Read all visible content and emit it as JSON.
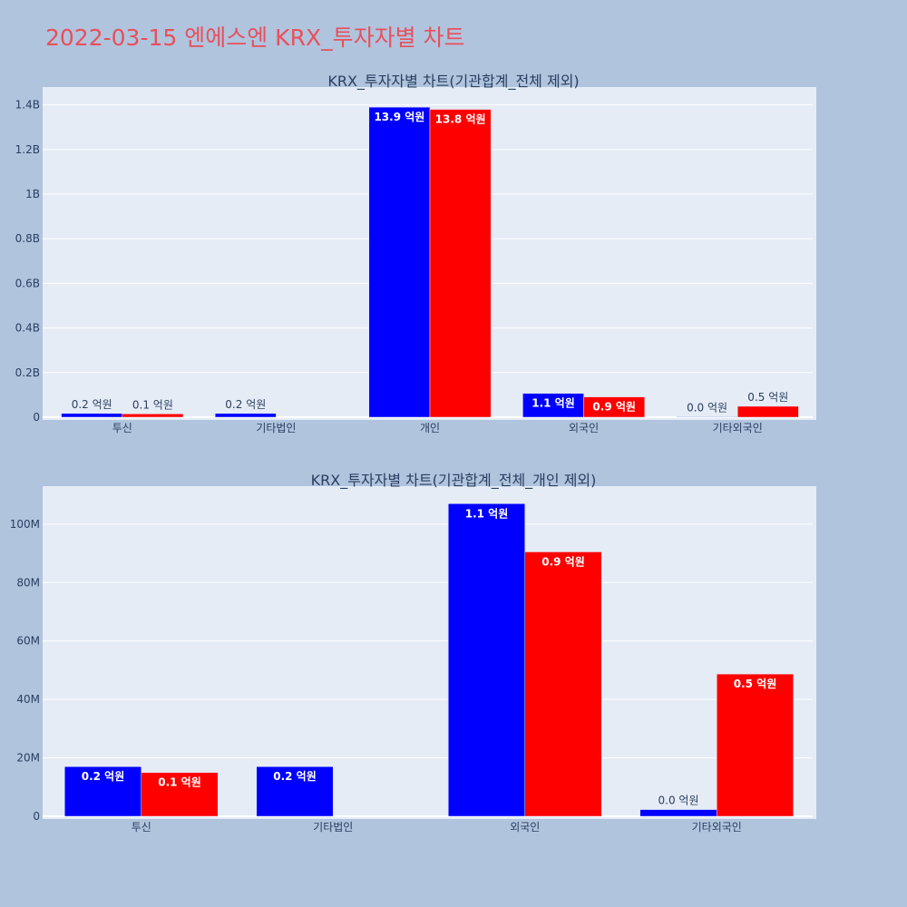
{
  "page_title": "2022-03-15 엔에스엔 KRX_투자자별 차트",
  "chart_data": [
    {
      "type": "bar",
      "title": "KRX_투자자별 차트(기관합계_전체 제외)",
      "categories": [
        "투신",
        "기타법인",
        "개인",
        "외국인",
        "기타외국인"
      ],
      "series": [
        {
          "color": "#0000ff",
          "values": [
            17000000,
            17000000,
            1390000000,
            107000000,
            2300000
          ],
          "labels": [
            "0.2 억원",
            "0.2 억원",
            "13.9 억원",
            "1.1 억원",
            "0.0 억원"
          ]
        },
        {
          "color": "#ff0000",
          "values": [
            15000000,
            0,
            1380000000,
            91000000,
            49000000
          ],
          "labels": [
            "0.1 억원",
            "",
            "13.8 억원",
            "0.9 억원",
            "0.5 억원"
          ]
        }
      ],
      "ylim": [
        0,
        1480000000
      ],
      "yticks": [
        0,
        200000000,
        400000000,
        600000000,
        800000000,
        1000000000,
        1200000000,
        1400000000
      ],
      "ytick_labels": [
        "0",
        "0.2B",
        "0.4B",
        "0.6B",
        "0.8B",
        "1B",
        "1.2B",
        "1.4B"
      ],
      "grid": true,
      "plot_bg": "#e5ecf6"
    },
    {
      "type": "bar",
      "title": "KRX_투자자별 차트(기관합계_전체_개인 제외)",
      "categories": [
        "투신",
        "기타법인",
        "외국인",
        "기타외국인"
      ],
      "series": [
        {
          "color": "#0000ff",
          "values": [
            17000000,
            17000000,
            107000000,
            2300000
          ],
          "labels": [
            "0.2 억원",
            "0.2 억원",
            "1.1 억원",
            "0.0 억원"
          ]
        },
        {
          "color": "#ff0000",
          "values": [
            15000000,
            0,
            90500000,
            48700000
          ],
          "labels": [
            "0.1 억원",
            "",
            "0.9 억원",
            "0.5 억원"
          ]
        }
      ],
      "ylim": [
        0,
        113000000
      ],
      "yticks": [
        0,
        20000000,
        40000000,
        60000000,
        80000000,
        100000000
      ],
      "ytick_labels": [
        "0",
        "20M",
        "40M",
        "60M",
        "80M",
        "100M"
      ],
      "grid": true,
      "plot_bg": "#e5ecf6"
    }
  ]
}
